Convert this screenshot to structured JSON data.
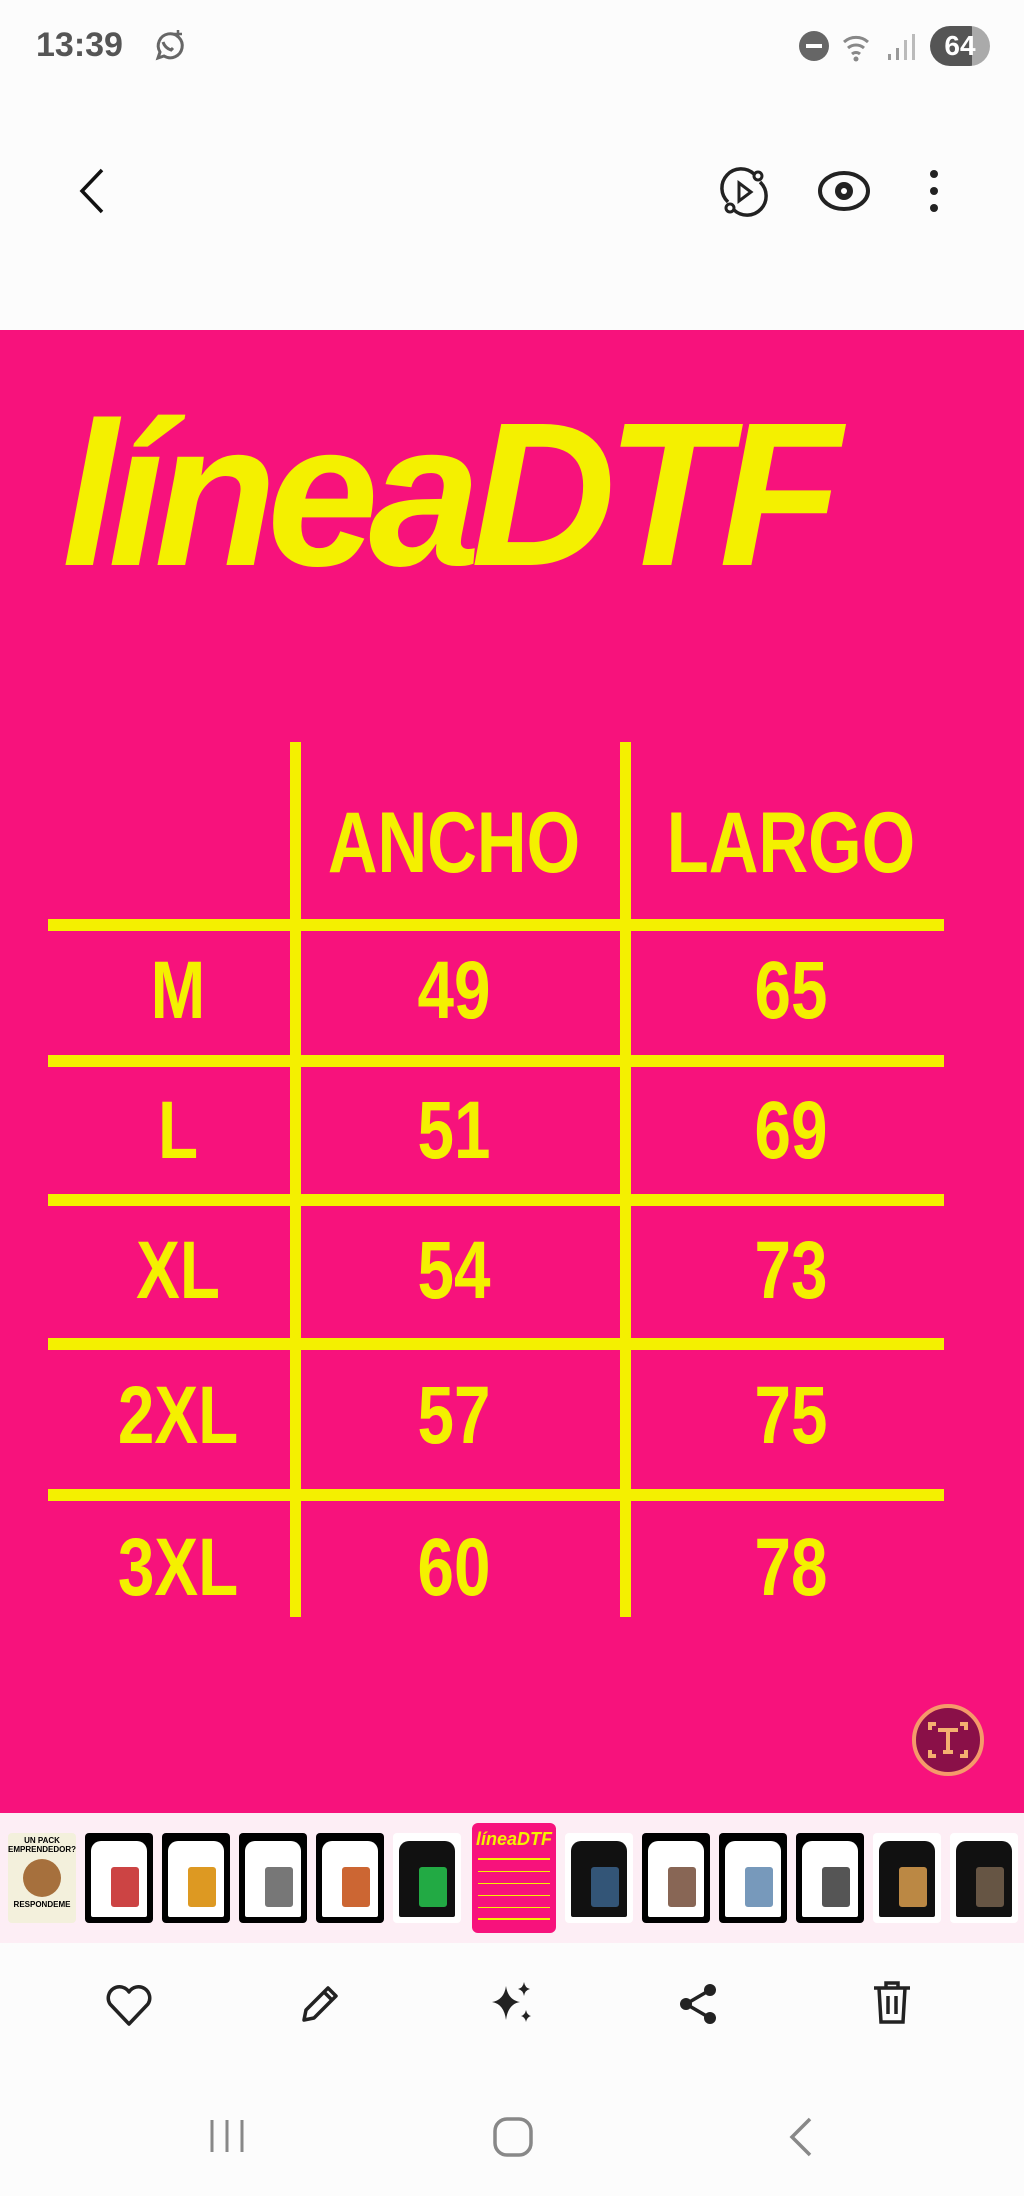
{
  "status_bar": {
    "time": "13:39",
    "battery": "64",
    "icons": [
      "whatsapp-call-icon",
      "do-not-disturb-icon",
      "wifi-icon",
      "signal-icon",
      "battery-icon"
    ]
  },
  "top_bar": {
    "icons": [
      "back-icon",
      "remaster-icon",
      "view-icon",
      "more-icon"
    ]
  },
  "image": {
    "title": "líneaDTF",
    "headers": [
      "ANCHO",
      "LARGO"
    ],
    "rows": [
      {
        "size": "M",
        "ancho": "49",
        "largo": "65"
      },
      {
        "size": "L",
        "ancho": "51",
        "largo": "69"
      },
      {
        "size": "XL",
        "ancho": "54",
        "largo": "73"
      },
      {
        "size": "2XL",
        "ancho": "57",
        "largo": "75"
      },
      {
        "size": "3XL",
        "ancho": "60",
        "largo": "78"
      }
    ],
    "background_color": "#f7127c",
    "text_color": "#f4f000"
  },
  "filmstrip": {
    "first_thumb_text_top": "UN PACK EMPRENDEDOR?",
    "first_thumb_text_bottom": "RESPONDEME",
    "selected_thumb_title": "líneaDTF",
    "selected_index": 6
  },
  "actions": {
    "icons": [
      "favorite-icon",
      "edit-icon",
      "ai-sparkle-icon",
      "share-icon",
      "delete-icon"
    ]
  },
  "nav_bar": {
    "icons": [
      "recents-icon",
      "home-icon",
      "back-nav-icon"
    ]
  }
}
